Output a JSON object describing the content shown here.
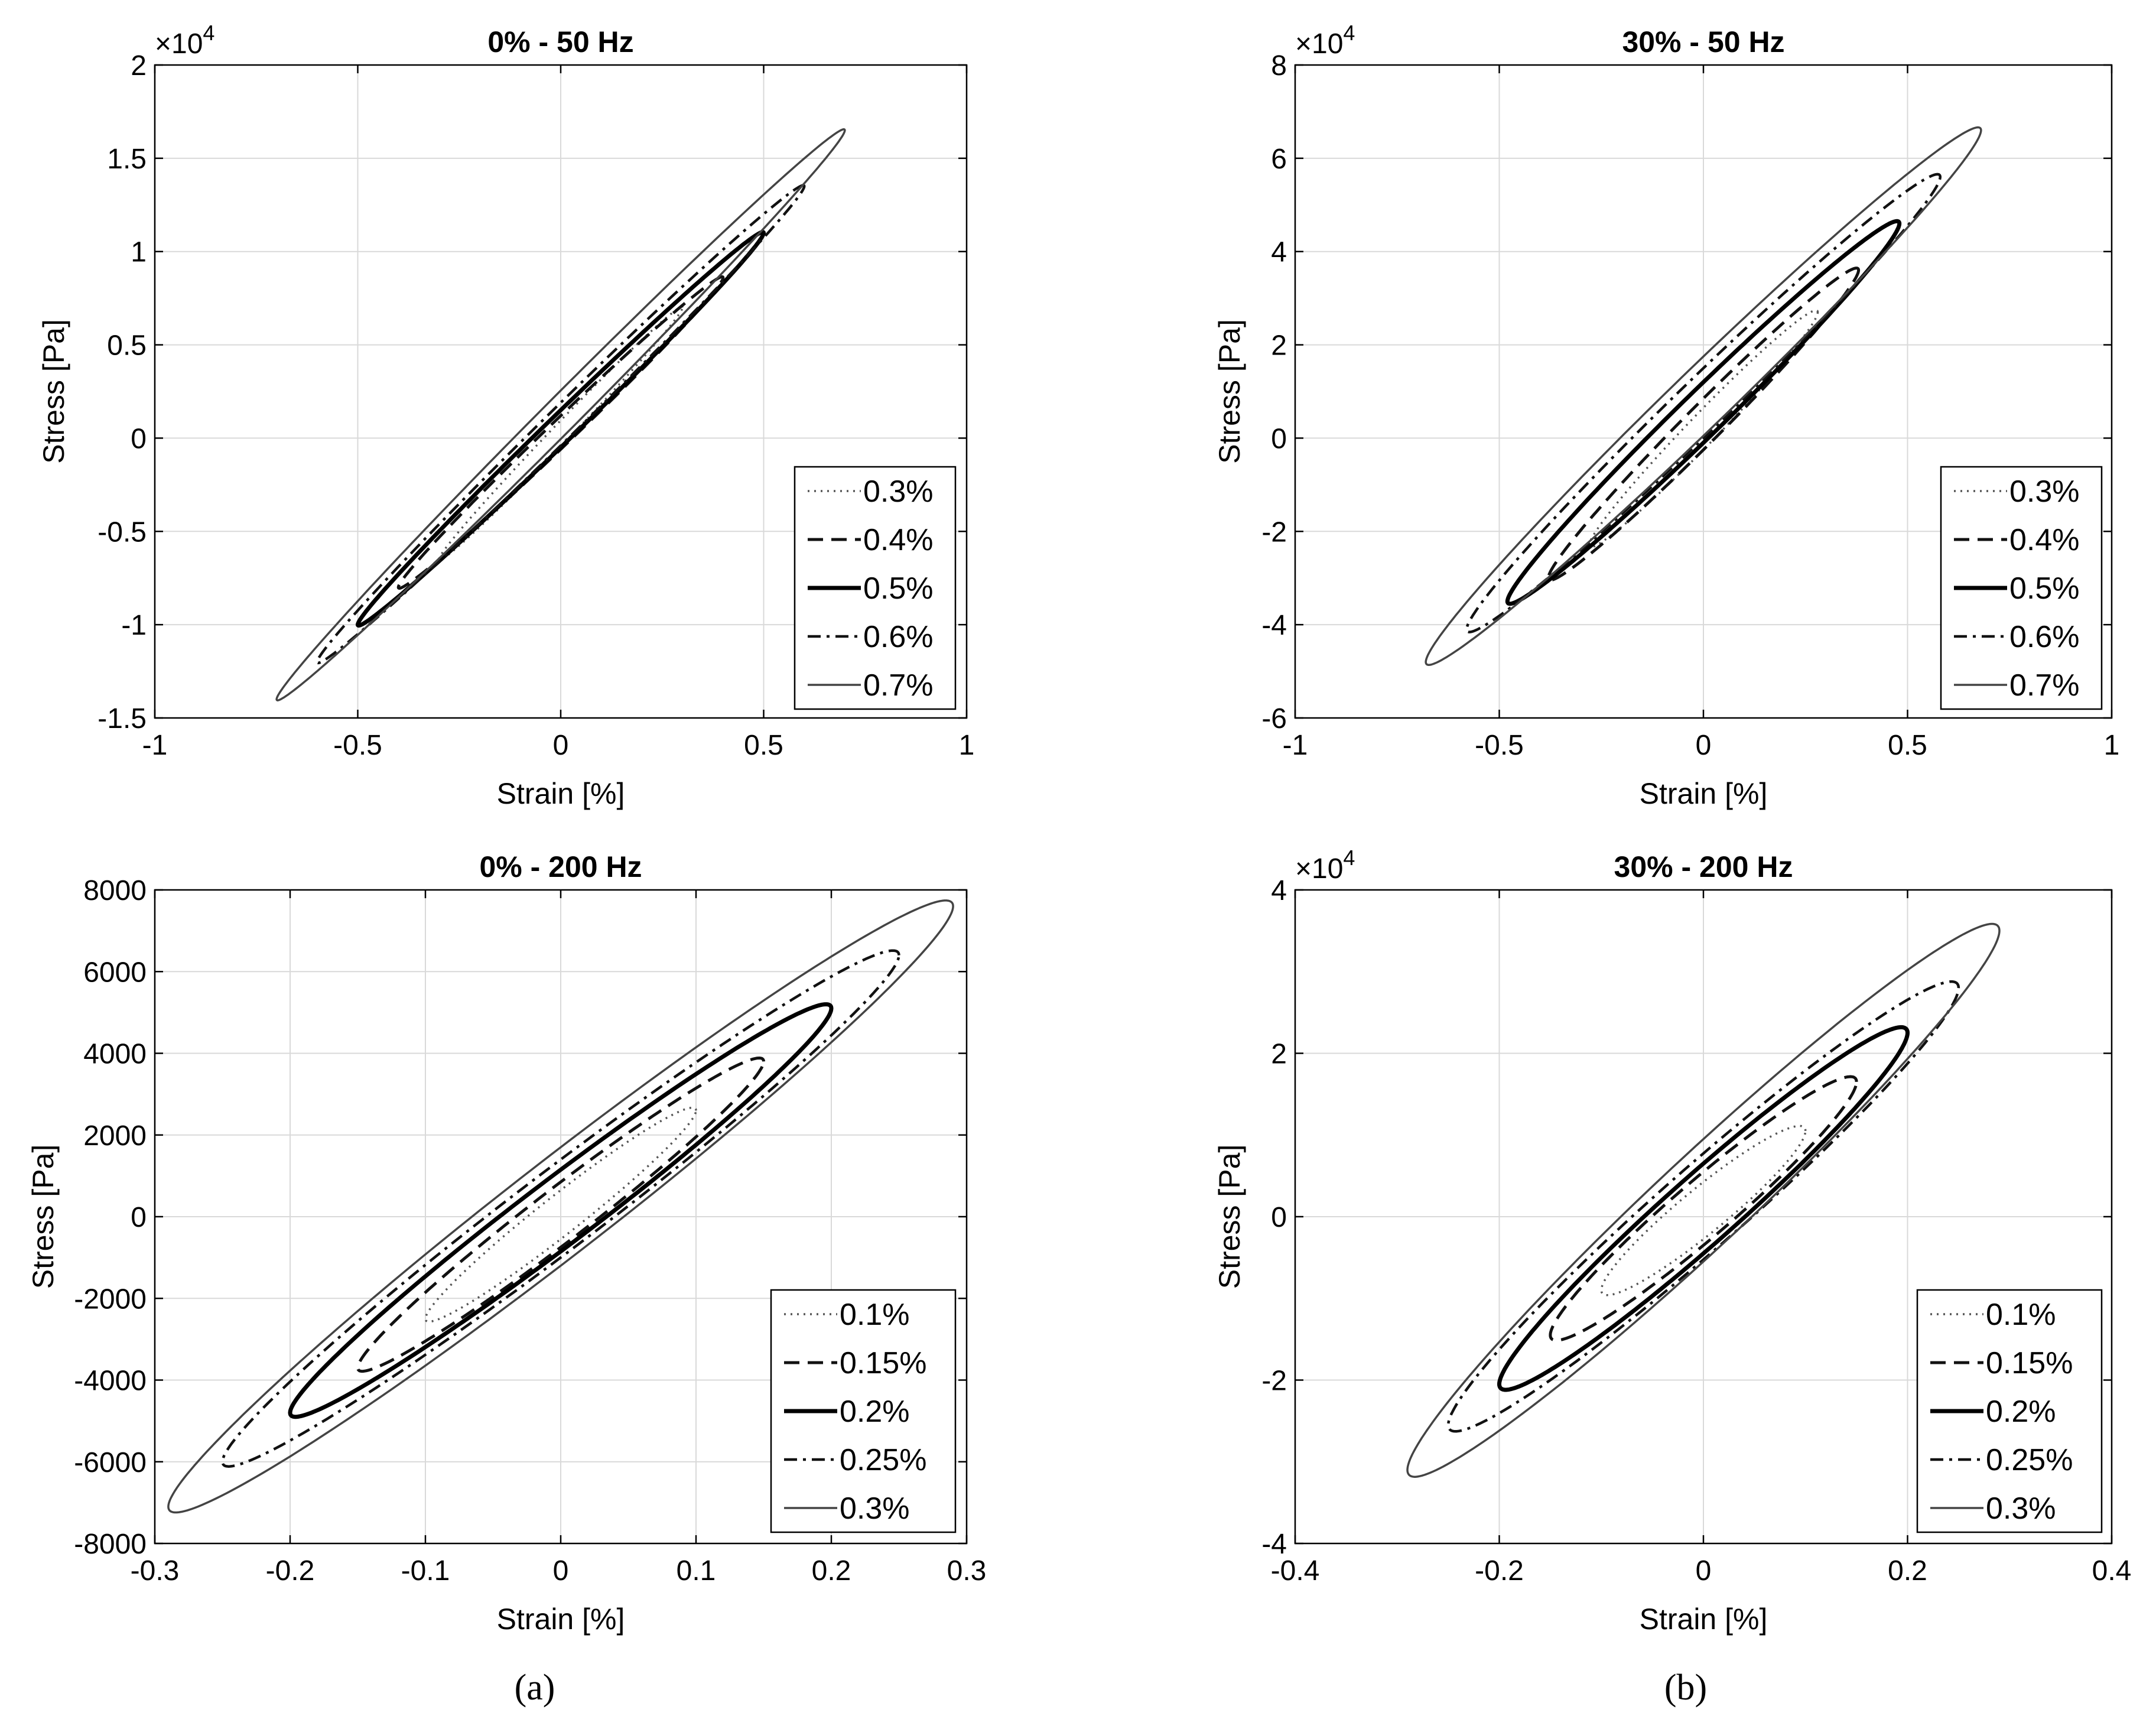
{
  "captions": [
    "(a)",
    "(b)"
  ],
  "chart_data": [
    {
      "type": "line",
      "title": "0% - 50 Hz",
      "xlabel": "Strain [%]",
      "ylabel": "Stress [Pa]",
      "xlim": [
        -1,
        1
      ],
      "ylim": [
        -15000,
        20000
      ],
      "xticks": [
        -1,
        -0.5,
        0,
        0.5,
        1
      ],
      "xtick_labels": [
        "-1",
        "-0.5",
        "0",
        "0.5",
        "1"
      ],
      "yticks": [
        -15000,
        -10000,
        -5000,
        0,
        5000,
        10000,
        15000,
        20000
      ],
      "ytick_labels": [
        "-1.5",
        "-1",
        "-0.5",
        "0",
        "0.5",
        "1",
        "1.5",
        "2"
      ],
      "exponent_label": "×10",
      "exponent_power": "4",
      "grid": true,
      "legend_position": "bottom-right",
      "series": [
        {
          "name": "0.3%",
          "style": "dotted",
          "amplitude": 0.3,
          "stress_peak": 7000,
          "stress_trough": -6500,
          "half_width": 700
        },
        {
          "name": "0.4%",
          "style": "dashed",
          "amplitude": 0.4,
          "stress_peak": 8600,
          "stress_trough": -8000,
          "half_width": 900
        },
        {
          "name": "0.5%",
          "style": "solid-thick",
          "amplitude": 0.5,
          "stress_peak": 11000,
          "stress_trough": -10000,
          "half_width": 1000
        },
        {
          "name": "0.6%",
          "style": "dashdot",
          "amplitude": 0.6,
          "stress_peak": 13500,
          "stress_trough": -12000,
          "half_width": 1150
        },
        {
          "name": "0.7%",
          "style": "solid-thin",
          "amplitude": 0.7,
          "stress_peak": 16500,
          "stress_trough": -14000,
          "half_width": 1300
        }
      ]
    },
    {
      "type": "line",
      "title": "30% - 50 Hz",
      "xlabel": "Strain [%]",
      "ylabel": "Stress [Pa]",
      "xlim": [
        -1,
        1
      ],
      "ylim": [
        -60000,
        80000
      ],
      "xticks": [
        -1,
        -0.5,
        0,
        0.5,
        1
      ],
      "xtick_labels": [
        "-1",
        "-0.5",
        "0",
        "0.5",
        "1"
      ],
      "yticks": [
        -60000,
        -40000,
        -20000,
        0,
        20000,
        40000,
        60000,
        80000
      ],
      "ytick_labels": [
        "-6",
        "-4",
        "-2",
        "0",
        "2",
        "4",
        "6",
        "8"
      ],
      "exponent_label": "×10",
      "exponent_power": "4",
      "grid": true,
      "legend_position": "bottom-right",
      "series": [
        {
          "name": "0.3%",
          "style": "dotted",
          "amplitude": 0.28,
          "stress_peak": 27000,
          "stress_trough": -23000,
          "half_width": 4500
        },
        {
          "name": "0.4%",
          "style": "dashed",
          "amplitude": 0.38,
          "stress_peak": 36000,
          "stress_trough": -30000,
          "half_width": 5500
        },
        {
          "name": "0.5%",
          "style": "solid-thick",
          "amplitude": 0.48,
          "stress_peak": 46000,
          "stress_trough": -35000,
          "half_width": 6500
        },
        {
          "name": "0.6%",
          "style": "dashdot",
          "amplitude": 0.58,
          "stress_peak": 56000,
          "stress_trough": -41000,
          "half_width": 7500
        },
        {
          "name": "0.7%",
          "style": "solid-thin",
          "amplitude": 0.68,
          "stress_peak": 66000,
          "stress_trough": -48000,
          "half_width": 8500
        }
      ]
    },
    {
      "type": "line",
      "title": "0% - 200 Hz",
      "xlabel": "Strain [%]",
      "ylabel": "Stress [Pa]",
      "xlim": [
        -0.3,
        0.3
      ],
      "ylim": [
        -8000,
        8000
      ],
      "xticks": [
        -0.3,
        -0.2,
        -0.1,
        0,
        0.1,
        0.2,
        0.3
      ],
      "xtick_labels": [
        "-0.3",
        "-0.2",
        "-0.1",
        "0",
        "0.1",
        "0.2",
        "0.3"
      ],
      "yticks": [
        -8000,
        -6000,
        -4000,
        -2000,
        0,
        2000,
        4000,
        6000,
        8000
      ],
      "ytick_labels": [
        "-8000",
        "-6000",
        "-4000",
        "-2000",
        "0",
        "2000",
        "4000",
        "6000",
        "8000"
      ],
      "exponent_label": "",
      "exponent_power": "",
      "grid": true,
      "legend_position": "bottom-right",
      "series": [
        {
          "name": "0.1%",
          "style": "dotted",
          "amplitude": 0.1,
          "stress_peak": 2600,
          "stress_trough": -2500,
          "half_width": 600
        },
        {
          "name": "0.15%",
          "style": "dashed",
          "amplitude": 0.15,
          "stress_peak": 3800,
          "stress_trough": -3700,
          "half_width": 800
        },
        {
          "name": "0.2%",
          "style": "solid-thick",
          "amplitude": 0.2,
          "stress_peak": 5100,
          "stress_trough": -4800,
          "half_width": 1000
        },
        {
          "name": "0.25%",
          "style": "dashdot",
          "amplitude": 0.25,
          "stress_peak": 6400,
          "stress_trough": -6000,
          "half_width": 1200
        },
        {
          "name": "0.3%",
          "style": "solid-thin",
          "amplitude": 0.29,
          "stress_peak": 7600,
          "stress_trough": -7100,
          "half_width": 1450
        }
      ]
    },
    {
      "type": "line",
      "title": "30% - 200 Hz",
      "xlabel": "Strain [%]",
      "ylabel": "Stress [Pa]",
      "xlim": [
        -0.4,
        0.4
      ],
      "ylim": [
        -40000,
        40000
      ],
      "xticks": [
        -0.4,
        -0.2,
        0,
        0.2,
        0.4
      ],
      "xtick_labels": [
        "-0.4",
        "-0.2",
        "0",
        "0.2",
        "0.4"
      ],
      "yticks": [
        -40000,
        -20000,
        0,
        20000,
        40000
      ],
      "ytick_labels": [
        "-4",
        "-2",
        "0",
        "2",
        "4"
      ],
      "exponent_label": "×10",
      "exponent_power": "4",
      "grid": true,
      "legend_position": "bottom-right",
      "series": [
        {
          "name": "0.1%",
          "style": "dotted",
          "amplitude": 0.1,
          "stress_peak": 10500,
          "stress_trough": -9000,
          "half_width": 3500
        },
        {
          "name": "0.15%",
          "style": "dashed",
          "amplitude": 0.15,
          "stress_peak": 16500,
          "stress_trough": -14500,
          "half_width": 4500
        },
        {
          "name": "0.2%",
          "style": "solid-thick",
          "amplitude": 0.2,
          "stress_peak": 22500,
          "stress_trough": -20500,
          "half_width": 5500
        },
        {
          "name": "0.25%",
          "style": "dashdot",
          "amplitude": 0.25,
          "stress_peak": 28000,
          "stress_trough": -25500,
          "half_width": 6500
        },
        {
          "name": "0.3%",
          "style": "solid-thin",
          "amplitude": 0.29,
          "stress_peak": 35000,
          "stress_trough": -31000,
          "half_width": 7500
        }
      ]
    }
  ]
}
